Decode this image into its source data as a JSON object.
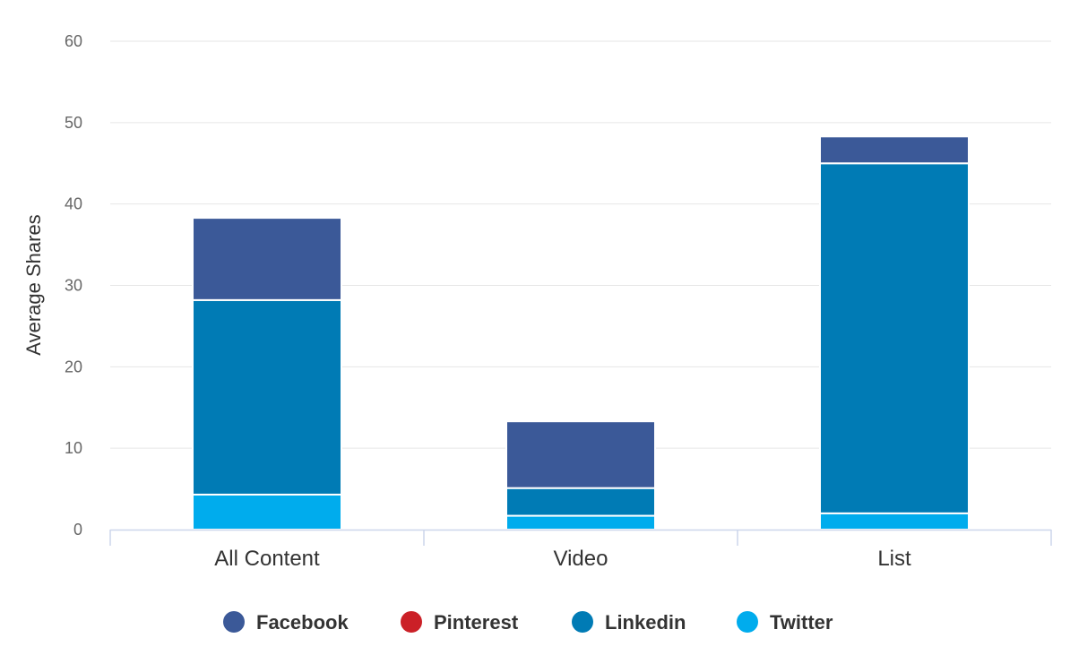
{
  "chart_data": {
    "type": "bar",
    "stacked": true,
    "ylabel": "Average Shares",
    "xlabel": "",
    "ylim": [
      0,
      60
    ],
    "yticks": [
      0,
      10,
      20,
      30,
      40,
      50,
      60
    ],
    "grid": true,
    "legend_position": "bottom",
    "categories": [
      "All Content",
      "Video",
      "List"
    ],
    "series": [
      {
        "name": "Facebook",
        "color": "#3b5998",
        "values": [
          10.1,
          8.2,
          3.3
        ]
      },
      {
        "name": "Pinterest",
        "color": "#cb2027",
        "values": [
          0,
          0,
          0
        ]
      },
      {
        "name": "Linkedin",
        "color": "#007bb5",
        "values": [
          23.9,
          3.4,
          43.0
        ]
      },
      {
        "name": "Twitter",
        "color": "#00aced",
        "values": [
          4.3,
          1.7,
          2.0
        ]
      }
    ]
  }
}
